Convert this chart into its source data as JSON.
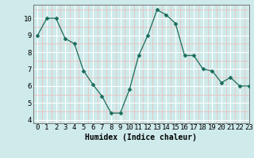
{
  "x": [
    0,
    1,
    2,
    3,
    4,
    5,
    6,
    7,
    8,
    9,
    10,
    11,
    12,
    13,
    14,
    15,
    16,
    17,
    18,
    19,
    20,
    21,
    22,
    23
  ],
  "y": [
    9.0,
    10.0,
    10.0,
    8.8,
    8.5,
    6.9,
    6.1,
    5.4,
    4.4,
    4.4,
    5.8,
    7.8,
    9.0,
    10.5,
    10.2,
    9.7,
    7.8,
    7.8,
    7.0,
    6.9,
    6.2,
    6.5,
    6.0,
    6.0
  ],
  "xlabel": "Humidex (Indice chaleur)",
  "xlim": [
    -0.5,
    23
  ],
  "ylim": [
    3.8,
    10.8
  ],
  "yticks": [
    4,
    5,
    6,
    7,
    8,
    9,
    10
  ],
  "xticks": [
    0,
    1,
    2,
    3,
    4,
    5,
    6,
    7,
    8,
    9,
    10,
    11,
    12,
    13,
    14,
    15,
    16,
    17,
    18,
    19,
    20,
    21,
    22,
    23
  ],
  "line_color": "#1a6b5a",
  "marker": "D",
  "marker_size": 2.5,
  "bg_color": "#ceeaea",
  "grid_major_color": "#ffffff",
  "grid_minor_color": "#f0b8b8",
  "axis_color": "#777777",
  "label_fontsize": 7,
  "tick_fontsize": 6.5
}
